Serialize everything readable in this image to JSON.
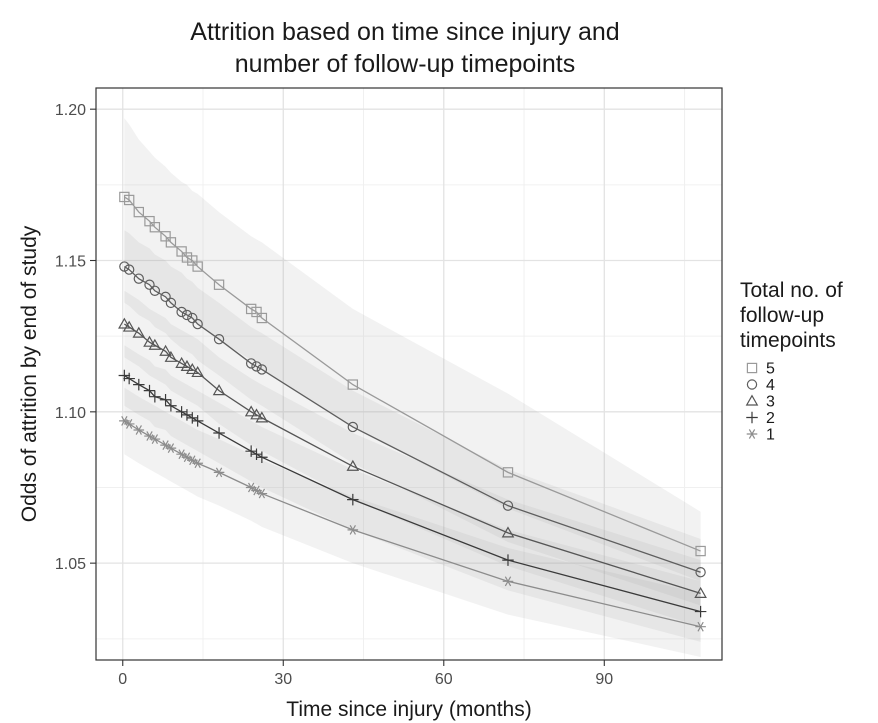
{
  "chart_data": {
    "type": "line",
    "title_lines": [
      "Attrition based on time since injury and",
      "number of follow-up timepoints"
    ],
    "xlabel": "Time since injury (months)",
    "ylabel": "Odds of attrition by end of study",
    "xlim": [
      -5,
      112
    ],
    "ylim": [
      1.018,
      1.207
    ],
    "x_ticks": [
      0,
      30,
      60,
      90
    ],
    "y_ticks": [
      1.05,
      1.1,
      1.15,
      1.2
    ],
    "y_tick_labels": [
      "1.05",
      "1.10",
      "1.15",
      "1.20"
    ],
    "grid": true,
    "legend": {
      "position": "right",
      "title_lines": [
        "Total no. of",
        "follow-up",
        "timepoints"
      ]
    },
    "series": [
      {
        "name": "5",
        "marker": "square",
        "color": "#9a9a9a",
        "x": [
          0.3,
          1.2,
          3,
          5,
          6,
          8,
          9,
          11,
          12,
          13,
          14,
          18,
          24,
          25,
          26,
          43,
          72,
          108
        ],
        "y": [
          1.171,
          1.17,
          1.166,
          1.163,
          1.161,
          1.158,
          1.156,
          1.153,
          1.151,
          1.15,
          1.148,
          1.142,
          1.134,
          1.133,
          1.131,
          1.109,
          1.08,
          1.054
        ],
        "band_upper": [
          1.197,
          1.195,
          1.19,
          1.186,
          1.184,
          1.181,
          1.179,
          1.176,
          1.175,
          1.173,
          1.172,
          1.166,
          1.158,
          1.157,
          1.156,
          1.134,
          1.106,
          1.067
        ],
        "band_lower": [
          1.149,
          1.148,
          1.145,
          1.142,
          1.14,
          1.138,
          1.136,
          1.134,
          1.132,
          1.131,
          1.129,
          1.124,
          1.117,
          1.116,
          1.114,
          1.095,
          1.068,
          1.044
        ]
      },
      {
        "name": "4",
        "marker": "circle",
        "color": "#5e5e5e",
        "x": [
          0.3,
          1.2,
          3,
          5,
          6,
          8,
          9,
          11,
          12,
          13,
          14,
          18,
          24,
          25,
          26,
          43,
          72,
          108
        ],
        "y": [
          1.148,
          1.147,
          1.144,
          1.142,
          1.14,
          1.138,
          1.136,
          1.133,
          1.132,
          1.131,
          1.129,
          1.124,
          1.116,
          1.115,
          1.114,
          1.095,
          1.069,
          1.047
        ],
        "band_upper": [
          1.16,
          1.159,
          1.156,
          1.154,
          1.152,
          1.15,
          1.148,
          1.146,
          1.144,
          1.143,
          1.141,
          1.136,
          1.128,
          1.127,
          1.126,
          1.107,
          1.081,
          1.058
        ],
        "band_lower": [
          1.136,
          1.135,
          1.132,
          1.13,
          1.128,
          1.126,
          1.124,
          1.121,
          1.12,
          1.119,
          1.117,
          1.112,
          1.104,
          1.103,
          1.102,
          1.083,
          1.057,
          1.036
        ]
      },
      {
        "name": "3",
        "marker": "triangle",
        "color": "#555555",
        "x": [
          0.3,
          1.2,
          3,
          5,
          6,
          8,
          9,
          11,
          12,
          13,
          14,
          18,
          24,
          25,
          26,
          43,
          72,
          108
        ],
        "y": [
          1.129,
          1.128,
          1.126,
          1.123,
          1.122,
          1.12,
          1.118,
          1.116,
          1.115,
          1.114,
          1.113,
          1.107,
          1.1,
          1.099,
          1.098,
          1.082,
          1.06,
          1.04
        ],
        "band_upper": [
          1.14,
          1.139,
          1.137,
          1.134,
          1.133,
          1.131,
          1.129,
          1.127,
          1.126,
          1.125,
          1.124,
          1.118,
          1.111,
          1.11,
          1.109,
          1.093,
          1.071,
          1.051
        ],
        "band_lower": [
          1.118,
          1.117,
          1.115,
          1.112,
          1.111,
          1.109,
          1.107,
          1.105,
          1.104,
          1.103,
          1.102,
          1.096,
          1.089,
          1.088,
          1.087,
          1.071,
          1.049,
          1.029
        ]
      },
      {
        "name": "2",
        "marker": "plus",
        "color": "#3a3a3a",
        "x": [
          0.3,
          1.2,
          3,
          5,
          6,
          8,
          9,
          11,
          12,
          13,
          14,
          18,
          24,
          25,
          26,
          43,
          72,
          108
        ],
        "y": [
          1.112,
          1.111,
          1.109,
          1.107,
          1.105,
          1.104,
          1.102,
          1.1,
          1.099,
          1.098,
          1.097,
          1.093,
          1.087,
          1.086,
          1.085,
          1.071,
          1.051,
          1.034
        ],
        "band_upper": [
          1.122,
          1.121,
          1.119,
          1.117,
          1.115,
          1.114,
          1.112,
          1.11,
          1.109,
          1.108,
          1.107,
          1.103,
          1.097,
          1.096,
          1.095,
          1.081,
          1.061,
          1.044
        ],
        "band_lower": [
          1.102,
          1.101,
          1.099,
          1.097,
          1.095,
          1.094,
          1.092,
          1.09,
          1.089,
          1.088,
          1.087,
          1.083,
          1.077,
          1.076,
          1.075,
          1.061,
          1.041,
          1.024
        ]
      },
      {
        "name": "1",
        "marker": "asterisk",
        "color": "#8c8c8c",
        "x": [
          0.3,
          1.2,
          3,
          5,
          6,
          8,
          9,
          11,
          12,
          13,
          14,
          18,
          24,
          25,
          26,
          43,
          72,
          108
        ],
        "y": [
          1.097,
          1.096,
          1.094,
          1.092,
          1.091,
          1.089,
          1.088,
          1.086,
          1.085,
          1.084,
          1.083,
          1.08,
          1.075,
          1.074,
          1.073,
          1.061,
          1.044,
          1.029
        ],
        "band_upper": [
          1.108,
          1.107,
          1.105,
          1.103,
          1.102,
          1.1,
          1.099,
          1.097,
          1.096,
          1.095,
          1.094,
          1.091,
          1.086,
          1.085,
          1.084,
          1.072,
          1.055,
          1.04
        ],
        "band_lower": [
          1.086,
          1.085,
          1.083,
          1.081,
          1.08,
          1.078,
          1.077,
          1.075,
          1.074,
          1.073,
          1.072,
          1.069,
          1.064,
          1.063,
          1.062,
          1.05,
          1.033,
          1.019
        ]
      }
    ]
  }
}
